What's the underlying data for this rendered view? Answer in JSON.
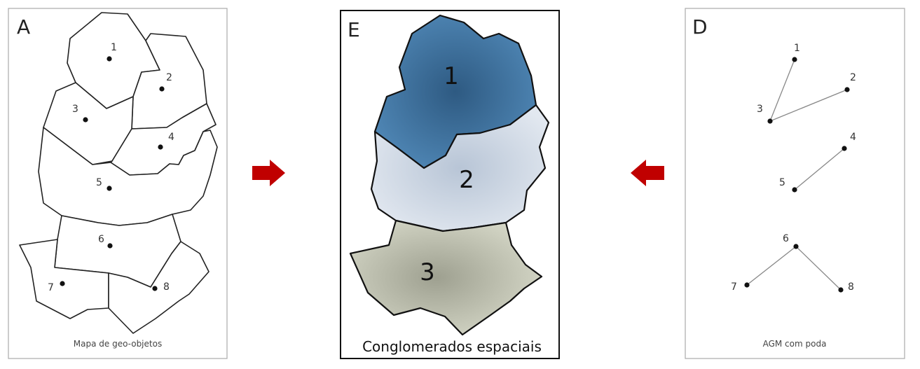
{
  "panels": {
    "a": {
      "letter": "A",
      "caption": "Mapa de geo-objetos",
      "regions": [
        {
          "id": "1",
          "label": "1"
        },
        {
          "id": "2",
          "label": "2"
        },
        {
          "id": "3",
          "label": "3"
        },
        {
          "id": "4",
          "label": "4"
        },
        {
          "id": "5",
          "label": "5"
        },
        {
          "id": "6",
          "label": "6"
        },
        {
          "id": "7",
          "label": "7"
        },
        {
          "id": "8",
          "label": "8"
        }
      ]
    },
    "e": {
      "letter": "E",
      "caption": "Conglomerados espaciais",
      "clusters": [
        {
          "id": "1",
          "label": "1",
          "color": "#4a7fae"
        },
        {
          "id": "2",
          "label": "2",
          "color": "#d3dbe6"
        },
        {
          "id": "3",
          "label": "3",
          "color": "#c9cbb8"
        }
      ]
    },
    "d": {
      "letter": "D",
      "caption": "AGM com poda",
      "nodes": [
        {
          "id": "1",
          "label": "1"
        },
        {
          "id": "2",
          "label": "2"
        },
        {
          "id": "3",
          "label": "3"
        },
        {
          "id": "4",
          "label": "4"
        },
        {
          "id": "5",
          "label": "5"
        },
        {
          "id": "6",
          "label": "6"
        },
        {
          "id": "7",
          "label": "7"
        },
        {
          "id": "8",
          "label": "8"
        }
      ],
      "edges": [
        [
          "1",
          "3"
        ],
        [
          "3",
          "2"
        ],
        [
          "4",
          "5"
        ],
        [
          "6",
          "7"
        ],
        [
          "6",
          "8"
        ]
      ]
    }
  },
  "arrows": [
    {
      "name": "arrow-a-to-e",
      "direction": "right",
      "color": "#c00000"
    },
    {
      "name": "arrow-d-to-e",
      "direction": "left",
      "color": "#c00000"
    }
  ]
}
